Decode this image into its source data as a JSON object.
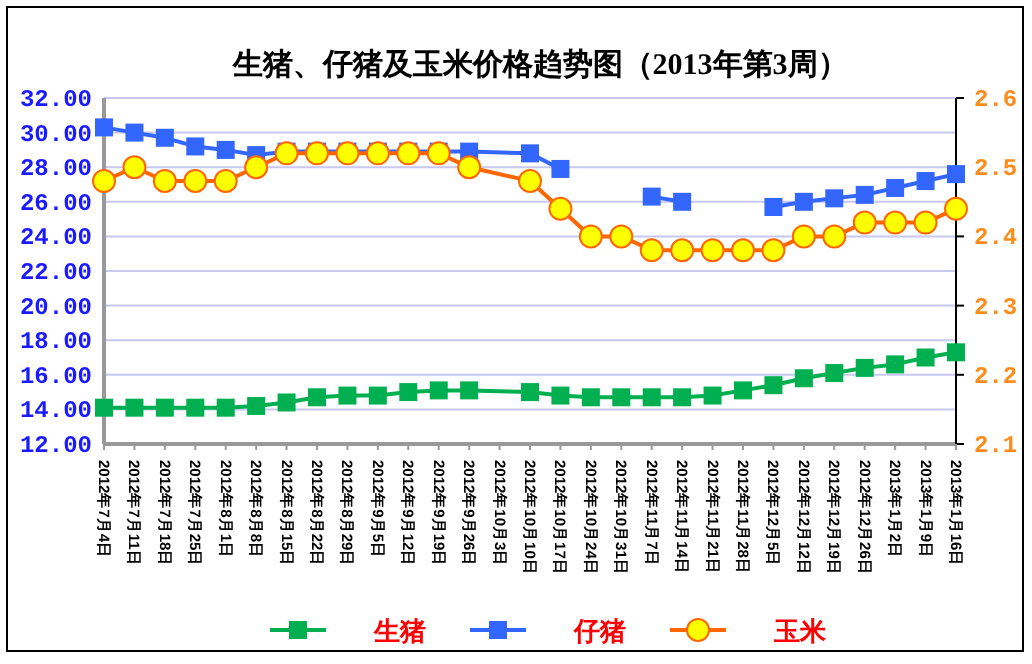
{
  "chart_data": {
    "type": "line",
    "title": "生猪、仔猪及玉米价格趋势图（2013年第3周）",
    "x": [
      "2012-07-04",
      "2012-07-11",
      "2012-07-18",
      "2012-07-25",
      "2012-08-01",
      "2012-08-08",
      "2012-08-15",
      "2012-08-22",
      "2012-08-29",
      "2012-09-05",
      "2012-09-12",
      "2012-09-19",
      "2012-09-26",
      "2012-10-10",
      "2012-10-17",
      "2012-10-24",
      "2012-10-31",
      "2012-11-07",
      "2012-11-14",
      "2012-11-21",
      "2012-11-28",
      "2012-12-05",
      "2012-12-12",
      "2012-12-19",
      "2012-12-26",
      "2013-01-02",
      "2013-01-09",
      "2013-01-16"
    ],
    "xlim": [
      "2012-07-04",
      "2013-01-16"
    ],
    "xticks": [
      {
        "value": "2012-07-04",
        "label": "2012年7月4日"
      },
      {
        "value": "2012-07-11",
        "label": "2012年7月11日"
      },
      {
        "value": "2012-07-18",
        "label": "2012年7月18日"
      },
      {
        "value": "2012-07-25",
        "label": "2012年7月25日"
      },
      {
        "value": "2012-08-01",
        "label": "2012年8月1日"
      },
      {
        "value": "2012-08-08",
        "label": "2012年8月8日"
      },
      {
        "value": "2012-08-15",
        "label": "2012年8月15日"
      },
      {
        "value": "2012-08-22",
        "label": "2012年8月22日"
      },
      {
        "value": "2012-08-29",
        "label": "2012年8月29日"
      },
      {
        "value": "2012-09-05",
        "label": "2012年9月5日"
      },
      {
        "value": "2012-09-12",
        "label": "2012年9月12日"
      },
      {
        "value": "2012-09-19",
        "label": "2012年9月19日"
      },
      {
        "value": "2012-09-26",
        "label": "2012年9月26日"
      },
      {
        "value": "2012-10-03",
        "label": "2012年10月3日"
      },
      {
        "value": "2012-10-10",
        "label": "2012年10月10日"
      },
      {
        "value": "2012-10-17",
        "label": "2012年10月17日"
      },
      {
        "value": "2012-10-24",
        "label": "2012年10月24日"
      },
      {
        "value": "2012-10-31",
        "label": "2012年10月31日"
      },
      {
        "value": "2012-11-07",
        "label": "2012年11月7日"
      },
      {
        "value": "2012-11-14",
        "label": "2012年11月14日"
      },
      {
        "value": "2012-11-21",
        "label": "2012年11月21日"
      },
      {
        "value": "2012-11-28",
        "label": "2012年11月28日"
      },
      {
        "value": "2012-12-05",
        "label": "2012年12月5日"
      },
      {
        "value": "2012-12-12",
        "label": "2012年12月12日"
      },
      {
        "value": "2012-12-19",
        "label": "2012年12月19日"
      },
      {
        "value": "2012-12-26",
        "label": "2012年12月26日"
      },
      {
        "value": "2013-01-02",
        "label": "2013年1月2日"
      },
      {
        "value": "2013-01-09",
        "label": "2013年1月9日"
      },
      {
        "value": "2013-01-16",
        "label": "2013年1月16日"
      }
    ],
    "ylim": [
      12,
      32
    ],
    "yticks": [
      {
        "value": 12,
        "label": "12.00"
      },
      {
        "value": 14,
        "label": "14.00"
      },
      {
        "value": 16,
        "label": "16.00"
      },
      {
        "value": 18,
        "label": "18.00"
      },
      {
        "value": 20,
        "label": "20.00"
      },
      {
        "value": 22,
        "label": "22.00"
      },
      {
        "value": 24,
        "label": "24.00"
      },
      {
        "value": 26,
        "label": "26.00"
      },
      {
        "value": 28,
        "label": "28.00"
      },
      {
        "value": 30,
        "label": "30.00"
      },
      {
        "value": 32,
        "label": "32.00"
      }
    ],
    "y2lim": [
      2.1,
      2.6
    ],
    "y2ticks": [
      2.1,
      2.2,
      2.3,
      2.4,
      2.5,
      2.6
    ],
    "grid": "y",
    "legend": "bottom",
    "series": [
      {
        "name": "生猪",
        "color": "#00b050",
        "marker": "square",
        "values": [
          14.1,
          14.1,
          14.1,
          14.1,
          14.1,
          14.2,
          14.4,
          14.7,
          14.8,
          14.8,
          15.0,
          15.1,
          15.1,
          15.0,
          14.8,
          14.7,
          14.7,
          14.7,
          14.7,
          14.8,
          15.1,
          15.4,
          15.8,
          16.1,
          16.4,
          16.6,
          17.0,
          17.3
        ]
      },
      {
        "name": "仔猪",
        "color": "#3366ff",
        "marker": "square",
        "values": [
          30.3,
          30.0,
          29.7,
          29.2,
          29.0,
          28.7,
          28.9,
          28.9,
          28.9,
          28.9,
          28.9,
          28.9,
          28.9,
          28.8,
          27.9,
          null,
          null,
          26.3,
          26.0,
          null,
          null,
          25.7,
          26.0,
          26.2,
          26.4,
          26.8,
          27.2,
          27.6
        ]
      },
      {
        "name": "玉米",
        "color": "#ff6600",
        "marker": "circle",
        "axis": "y2",
        "values": [
          2.48,
          2.5,
          2.48,
          2.48,
          2.48,
          2.5,
          2.52,
          2.52,
          2.52,
          2.52,
          2.52,
          2.52,
          2.5,
          2.48,
          2.44,
          2.4,
          2.4,
          2.38,
          2.38,
          2.38,
          2.38,
          2.38,
          2.4,
          2.4,
          2.42,
          2.42,
          2.42,
          2.44
        ]
      }
    ]
  }
}
